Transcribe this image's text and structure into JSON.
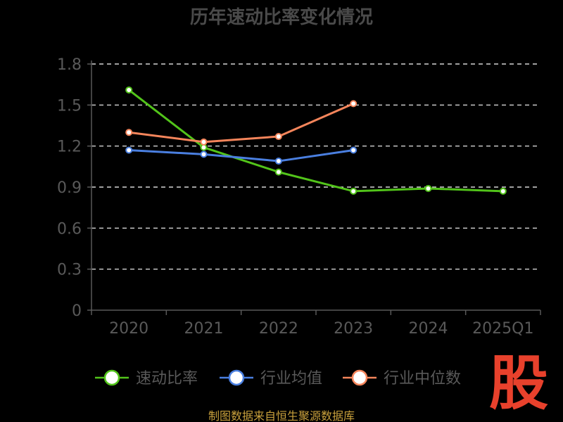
{
  "colors": {
    "background": "#000000",
    "series_quick_ratio": "#52c41a",
    "series_industry_avg": "#4a7fe0",
    "series_industry_median": "#f5855b",
    "logo": "#e8412c",
    "source_text": "#c8a03c"
  },
  "watermark": {
    "logo_text": "股"
  },
  "source": "制图数据来自恒生聚源数据库",
  "chart_data": {
    "type": "line",
    "title": "历年速动比率变化情况",
    "xlabel": "",
    "ylabel": "",
    "categories": [
      "2020",
      "2021",
      "2022",
      "2023",
      "2024",
      "2025Q1"
    ],
    "ylim": [
      0,
      1.8
    ],
    "yticks": [
      "0",
      "0.3",
      "0.6",
      "0.9",
      "1.2",
      "1.5",
      "1.8"
    ],
    "grid": true,
    "legend_position": "bottom",
    "series": [
      {
        "name": "速动比率",
        "color": "#52c41a",
        "values": [
          1.61,
          1.19,
          1.01,
          0.87,
          0.89,
          0.87
        ]
      },
      {
        "name": "行业均值",
        "color": "#4a7fe0",
        "values": [
          1.17,
          1.14,
          1.09,
          1.17,
          null,
          null
        ]
      },
      {
        "name": "行业中位数",
        "color": "#f5855b",
        "values": [
          1.3,
          1.23,
          1.27,
          1.51,
          null,
          null
        ]
      }
    ]
  }
}
